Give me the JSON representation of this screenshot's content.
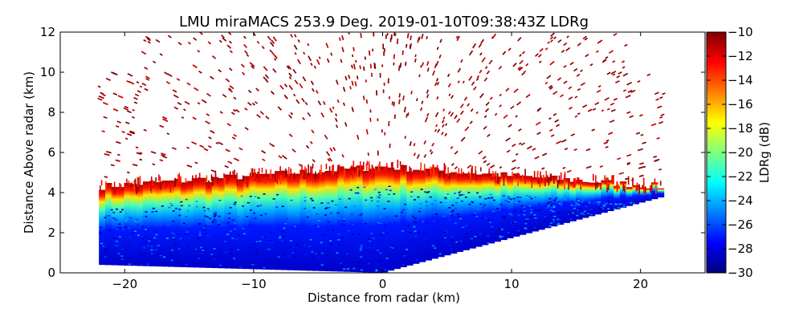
{
  "chart_data": {
    "type": "heatmap",
    "title": "LMU miraMACS 253.9 Deg. 2019-01-10T09:38:43Z  LDRg",
    "xlabel": "Distance from radar (km)",
    "ylabel": "Distance Above radar  (km)",
    "xlim": [
      -25,
      25
    ],
    "ylim": [
      0,
      12
    ],
    "x_ticks": [
      -20,
      -10,
      0,
      10,
      20
    ],
    "y_ticks": [
      0,
      2,
      4,
      6,
      8,
      10,
      12
    ],
    "grid": false,
    "colorbar": {
      "label": "LDRg (dB)",
      "range": [
        -30,
        -10
      ],
      "ticks": [
        -30,
        -28,
        -26,
        -24,
        -22,
        -20,
        -18,
        -16,
        -14,
        -12,
        -10
      ],
      "colormap": "jet"
    },
    "scan": {
      "extent_x_km": [
        -22,
        21.8
      ],
      "dense_layer_top_km": {
        "left": 4.3,
        "center": 5.3,
        "right": 4.3
      },
      "scan_lower_edge_km": {
        "left": 0.4,
        "center": 0.0,
        "right": 3.8
      },
      "bright_band_ldr_db": -12,
      "interior_ldr_db": -27,
      "sparse_echo_ldr_db": -11
    },
    "colors": {
      "jet": [
        "#00007f",
        "#0000ff",
        "#007fff",
        "#00ffff",
        "#7fff7f",
        "#ffff00",
        "#ff7f00",
        "#ff0000",
        "#7f0000"
      ]
    }
  }
}
